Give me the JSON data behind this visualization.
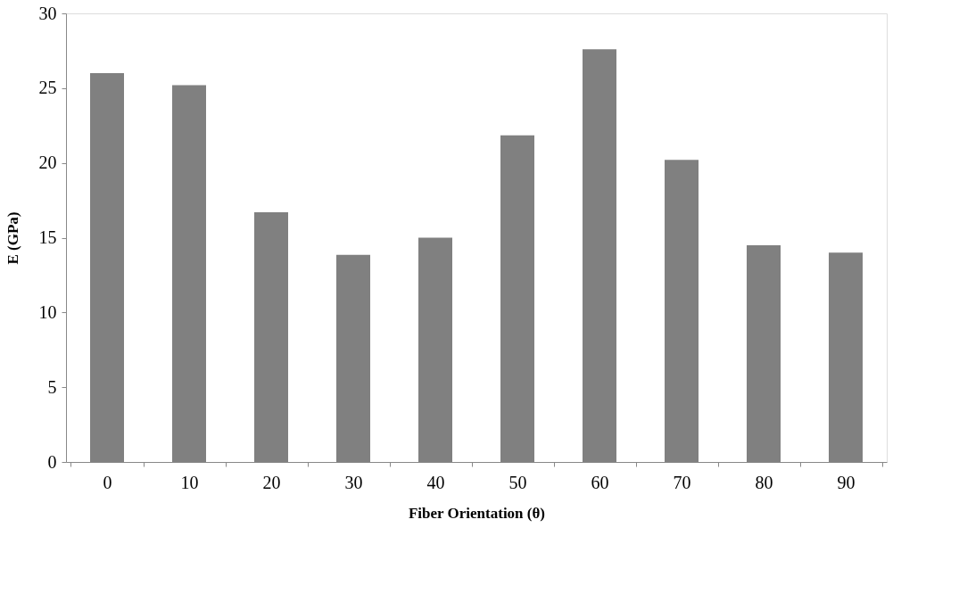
{
  "chart_data": {
    "type": "bar",
    "xlabel": "Fiber Orientation (θ)",
    "ylabel": "E (GPa)",
    "categories": [
      "0",
      "10",
      "20",
      "30",
      "40",
      "50",
      "60",
      "70",
      "80",
      "90"
    ],
    "values": [
      26.0,
      25.2,
      16.7,
      13.85,
      15.0,
      21.85,
      27.6,
      20.2,
      14.5,
      14.0
    ],
    "color": "#808080",
    "ylim": [
      0,
      30
    ],
    "yticks": [
      0,
      5,
      10,
      15,
      20,
      25,
      30
    ],
    "grid": false
  }
}
